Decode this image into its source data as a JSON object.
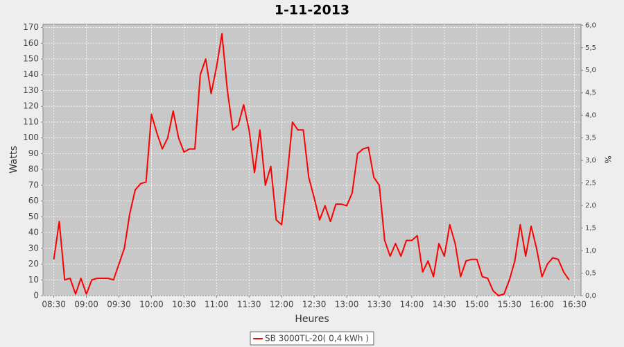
{
  "chart_data": {
    "type": "line",
    "title": "1-11-2013",
    "x_label": "Heures",
    "y_label": "Watts",
    "y2_label": "%",
    "x": [
      "08:30",
      "08:35",
      "08:40",
      "08:45",
      "08:50",
      "08:55",
      "09:00",
      "09:05",
      "09:10",
      "09:15",
      "09:20",
      "09:25",
      "09:30",
      "09:35",
      "09:40",
      "09:45",
      "09:50",
      "09:55",
      "10:00",
      "10:05",
      "10:10",
      "10:15",
      "10:20",
      "10:25",
      "10:30",
      "10:35",
      "10:40",
      "10:45",
      "10:50",
      "10:55",
      "11:00",
      "11:05",
      "11:10",
      "11:15",
      "11:20",
      "11:25",
      "11:30",
      "11:35",
      "11:40",
      "11:45",
      "11:50",
      "11:55",
      "12:00",
      "12:05",
      "12:10",
      "12:15",
      "12:20",
      "12:25",
      "12:30",
      "12:35",
      "12:40",
      "12:45",
      "12:50",
      "12:55",
      "13:00",
      "13:05",
      "13:10",
      "13:15",
      "13:20",
      "13:25",
      "13:30",
      "13:35",
      "13:40",
      "13:45",
      "13:50",
      "13:55",
      "14:00",
      "14:05",
      "14:10",
      "14:15",
      "14:20",
      "14:25",
      "14:30",
      "14:35",
      "14:40",
      "14:45",
      "14:50",
      "14:55",
      "15:00",
      "15:05",
      "15:10",
      "15:15",
      "15:20",
      "15:25",
      "15:30",
      "15:35",
      "15:40",
      "15:45",
      "15:50",
      "15:55",
      "16:00",
      "16:05",
      "16:10",
      "16:15",
      "16:20",
      "16:25"
    ],
    "series": [
      {
        "name": "SB 3000TL-20( 0,4 kWh )",
        "color": "#ff0000",
        "values": [
          23,
          47,
          10,
          11,
          1,
          11,
          1,
          10,
          11,
          11,
          11,
          10,
          20,
          30,
          52,
          67,
          71,
          72,
          115,
          103,
          93,
          100,
          117,
          100,
          91,
          93,
          93,
          140,
          150,
          128,
          145,
          166,
          130,
          105,
          108,
          121,
          105,
          78,
          105,
          70,
          82,
          48,
          45,
          75,
          110,
          105,
          105,
          75,
          62,
          48,
          57,
          47,
          58,
          58,
          57,
          65,
          90,
          93,
          94,
          75,
          70,
          35,
          25,
          33,
          25,
          35,
          35,
          38,
          15,
          22,
          12,
          33,
          25,
          45,
          33,
          12,
          22,
          23,
          23,
          12,
          11,
          3,
          0,
          1,
          10,
          22,
          45,
          25,
          44,
          30,
          12,
          20,
          24,
          23,
          15,
          10
        ]
      }
    ],
    "xlim": [
      "08:20",
      "16:36"
    ],
    "xticks": [
      "08:30",
      "09:00",
      "09:30",
      "10:00",
      "10:30",
      "11:00",
      "11:30",
      "12:00",
      "12:30",
      "13:00",
      "13:30",
      "14:00",
      "14:30",
      "15:00",
      "15:30",
      "16:00",
      "16:30"
    ],
    "ylim": [
      0,
      172
    ],
    "yticks": [
      0,
      10,
      20,
      30,
      40,
      50,
      60,
      70,
      80,
      90,
      100,
      110,
      120,
      130,
      140,
      150,
      160,
      170
    ],
    "y2lim": [
      0,
      6.02
    ],
    "y2ticks": [
      {
        "value": 0,
        "label": "0,0"
      },
      {
        "value": 0.5,
        "label": "0,5"
      },
      {
        "value": 1,
        "label": "1,0"
      },
      {
        "value": 1.5,
        "label": "1,5"
      },
      {
        "value": 2,
        "label": "2,0"
      },
      {
        "value": 2.5,
        "label": "2,5"
      },
      {
        "value": 3,
        "label": "3,0"
      },
      {
        "value": 3.5,
        "label": "3,5"
      },
      {
        "value": 4,
        "label": "4,0"
      },
      {
        "value": 4.5,
        "label": "4,5"
      },
      {
        "value": 5,
        "label": "5,0"
      },
      {
        "value": 5.5,
        "label": "5,5"
      },
      {
        "value": 6,
        "label": "6,0"
      }
    ],
    "grid": true,
    "legend": "bottom"
  }
}
